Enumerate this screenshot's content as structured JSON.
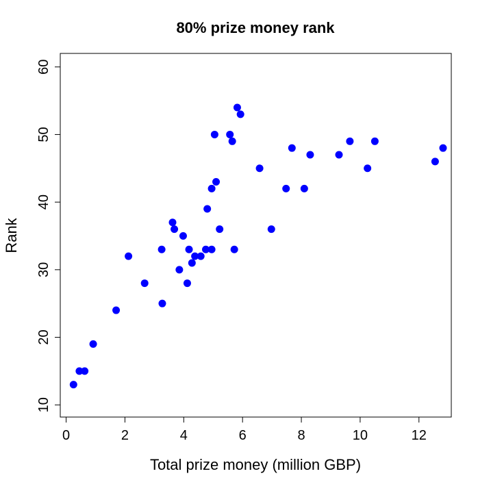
{
  "chart_data": {
    "type": "scatter",
    "title": "80% prize money rank",
    "xlabel": "Total prize money (million GBP)",
    "ylabel": "Rank",
    "xlim": [
      -0.2,
      13.1
    ],
    "ylim": [
      8.2,
      62
    ],
    "x_ticks": [
      0,
      2,
      4,
      6,
      8,
      10,
      12
    ],
    "y_ticks": [
      10,
      20,
      30,
      40,
      50,
      60
    ],
    "grid": false,
    "legend": "none",
    "point_color": "#0000ff",
    "series": [
      {
        "points": [
          [
            0.25,
            13
          ],
          [
            0.45,
            15
          ],
          [
            0.63,
            15
          ],
          [
            0.92,
            19
          ],
          [
            1.7,
            24
          ],
          [
            2.12,
            32
          ],
          [
            2.67,
            28
          ],
          [
            3.25,
            33
          ],
          [
            3.27,
            25
          ],
          [
            3.62,
            37
          ],
          [
            3.68,
            36
          ],
          [
            3.85,
            30
          ],
          [
            3.98,
            35
          ],
          [
            4.12,
            28
          ],
          [
            4.18,
            33
          ],
          [
            4.28,
            31
          ],
          [
            4.38,
            32
          ],
          [
            4.58,
            32
          ],
          [
            4.75,
            33
          ],
          [
            4.8,
            39
          ],
          [
            4.95,
            33
          ],
          [
            4.95,
            42
          ],
          [
            5.05,
            50
          ],
          [
            5.1,
            43
          ],
          [
            5.22,
            36
          ],
          [
            5.57,
            50
          ],
          [
            5.65,
            49
          ],
          [
            5.72,
            33
          ],
          [
            5.82,
            54
          ],
          [
            5.93,
            53
          ],
          [
            6.58,
            45
          ],
          [
            6.98,
            36
          ],
          [
            7.48,
            42
          ],
          [
            7.68,
            48
          ],
          [
            8.1,
            42
          ],
          [
            8.3,
            47
          ],
          [
            9.28,
            47
          ],
          [
            9.65,
            49
          ],
          [
            10.25,
            45
          ],
          [
            10.5,
            49
          ],
          [
            12.55,
            46
          ],
          [
            12.82,
            48
          ]
        ]
      }
    ]
  }
}
